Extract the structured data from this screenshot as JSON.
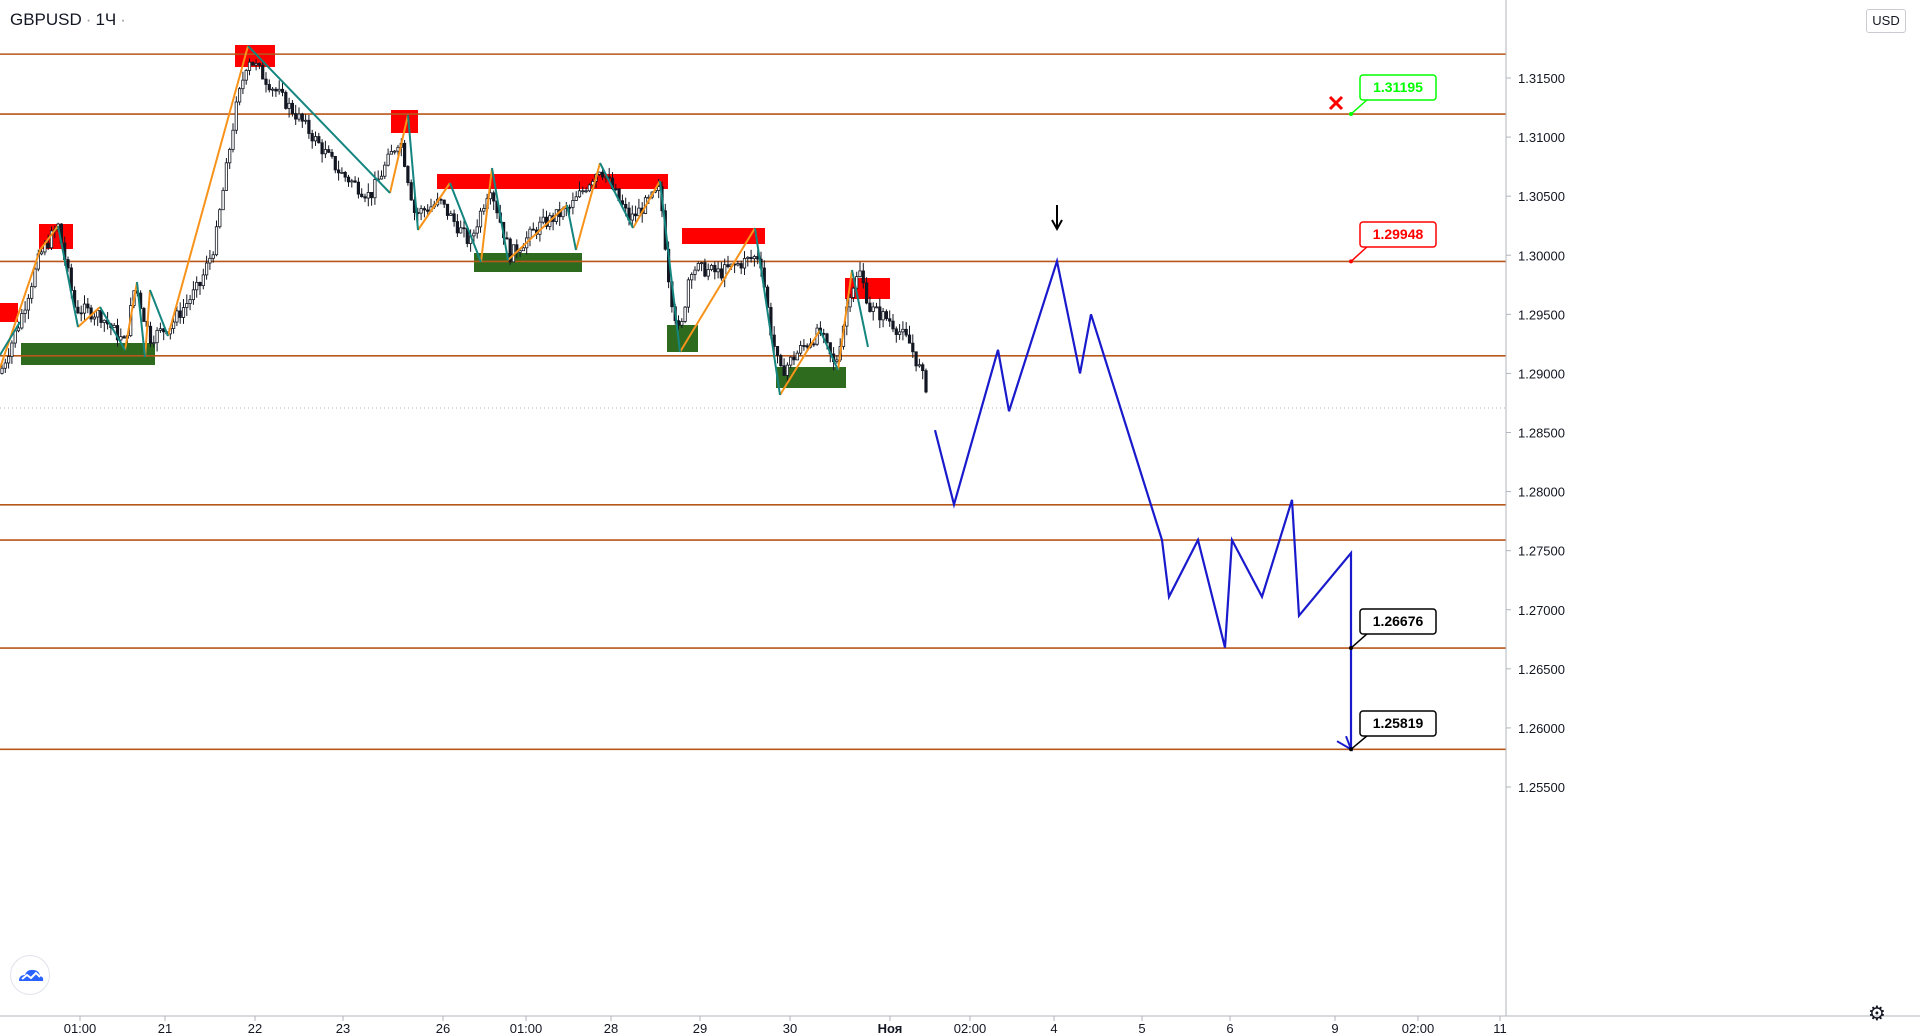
{
  "header": {
    "symbol": "GBPUSD",
    "interval": "1Ч",
    "currency": "USD"
  },
  "colors": {
    "level_line": "#b8571a",
    "level_label_bg": "#b8571a",
    "current_price_bg": "#c0c3ca",
    "resistance_zone": "#ff0000",
    "support_zone": "#2f6b1f",
    "forecast_line": "#1a1acd",
    "wave_up": "#f7931a",
    "wave_down": "#14857f",
    "candle": "#131722",
    "callout_green": "#00ff00",
    "callout_red": "#ff0000",
    "callout_black": "#000000"
  },
  "icons": {
    "logo": "tradingview-cloud-icon",
    "settings": "gear-icon",
    "target_cancel": "red-x-icon",
    "arrow": "down-arrow-icon"
  },
  "chart_data": {
    "type": "candlestick",
    "symbol": "GBPUSD",
    "timeframe": "1Ч",
    "ylim": [
      1.2515,
      1.3205
    ],
    "y_ticks": [
      "1.31500",
      "1.31000",
      "1.30500",
      "1.30000",
      "1.29500",
      "1.29000",
      "1.28500",
      "1.28000",
      "1.27500",
      "1.27000",
      "1.26500",
      "1.26000",
      "1.25500"
    ],
    "x_tick_labels": [
      "01:00",
      "21",
      "22",
      "23",
      "26",
      "01:00",
      "28",
      "29",
      "30",
      "Ноя",
      "02:00",
      "4",
      "5",
      "6",
      "9",
      "02:00",
      "11"
    ],
    "price_levels": [
      "1.31702",
      "1.31195",
      "1.29948",
      "1.29149",
      "1.27888",
      "1.27590",
      "1.26676",
      "1.25819"
    ],
    "current_price": "1.28707",
    "grid": false,
    "resistance_zones": [
      "1.29700",
      "1.31702",
      "1.31195",
      "1.30641",
      "1.30170",
      "1.29792"
    ],
    "support_zones": [
      "1.29149",
      "1.29935",
      "1.29343",
      "1.29037"
    ],
    "forecast_path": [
      1.2852,
      1.2789,
      1.292,
      1.2868,
      1.2995,
      1.29,
      1.295,
      1.2759,
      1.2711,
      1.2759,
      1.2668,
      1.2759,
      1.2711,
      1.2793,
      1.2695,
      1.2748,
      1.2582
    ],
    "annotations": [
      {
        "label": "1.31195",
        "style": "green",
        "status": "cancelled"
      },
      {
        "label": "1.29948",
        "style": "red"
      },
      {
        "label": "1.26676",
        "style": "black"
      },
      {
        "label": "1.25819",
        "style": "black"
      }
    ]
  }
}
